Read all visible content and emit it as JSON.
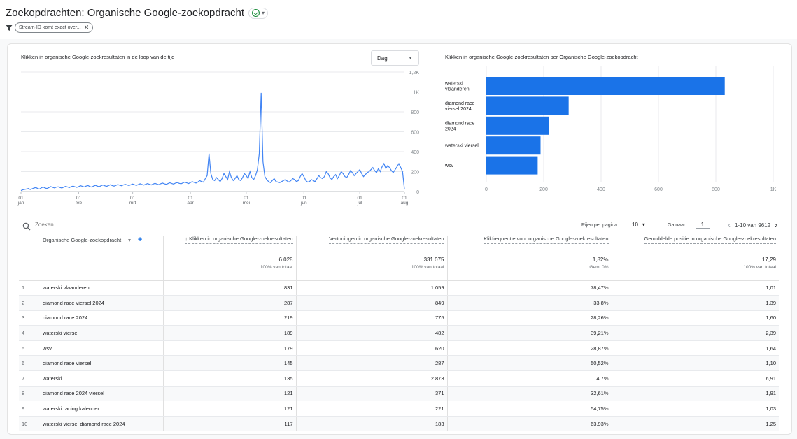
{
  "header": {
    "title": "Zoekopdrachten: Organische Google-zoekopdracht",
    "filter_chip": "Stream-ID komt exact over..."
  },
  "line_chart": {
    "title": "Klikken in organische Google-zoekresultaten in de loop van de tijd",
    "granularity": "Dag",
    "color": "#4285f4"
  },
  "bar_chart": {
    "title": "Klikken in organische Google-zoekresultaten per Organische Google-zoekopdracht",
    "color": "#1a73e8"
  },
  "chart_data": [
    {
      "type": "line",
      "title": "Klikken in organische Google-zoekresultaten in de loop van de tijd",
      "x_tick_labels": [
        [
          "01",
          "jan"
        ],
        [
          "01",
          "feb"
        ],
        [
          "01",
          "mrt"
        ],
        [
          "01",
          "apr"
        ],
        [
          "01",
          "mei"
        ],
        [
          "01",
          "jun"
        ],
        [
          "01",
          "jul"
        ],
        [
          "01",
          "aug"
        ]
      ],
      "y_tick_labels": [
        "0",
        "200",
        "400",
        "600",
        "800",
        "1K",
        "1,2K"
      ],
      "ylim": [
        0,
        1200
      ],
      "y_axis_side": "right",
      "grid": true,
      "series": [
        {
          "values": [
            10,
            18,
            22,
            25,
            30,
            20,
            28,
            35,
            40,
            30,
            25,
            38,
            45,
            35,
            30,
            40,
            50,
            42,
            36,
            44,
            48,
            40,
            35,
            45,
            52,
            46,
            40,
            50,
            55,
            48,
            42,
            50,
            58,
            52,
            46,
            55,
            60,
            50,
            45,
            55,
            62,
            55,
            48,
            58,
            65,
            58,
            52,
            60,
            68,
            60,
            55,
            62,
            70,
            64,
            58,
            66,
            72,
            66,
            60,
            68,
            75,
            68,
            62,
            70,
            78,
            70,
            65,
            72,
            80,
            72,
            66,
            75,
            82,
            75,
            68,
            78,
            85,
            78,
            72,
            80,
            88,
            80,
            75,
            85,
            90,
            82,
            78,
            86,
            95,
            88,
            80,
            90,
            100,
            92,
            85,
            95,
            110,
            100,
            95,
            130,
            160,
            380,
            180,
            120,
            110,
            140,
            120,
            100,
            130,
            180,
            150,
            120,
            200,
            140,
            110,
            130,
            160,
            120,
            110,
            140,
            180,
            160,
            130,
            200,
            140,
            120,
            160,
            220,
            380,
            990,
            300,
            150,
            120,
            100,
            90,
            110,
            130,
            100,
            95,
            90,
            100,
            110,
            120,
            105,
            95,
            110,
            130,
            120,
            100,
            110,
            150,
            180,
            150,
            110,
            95,
            100,
            120,
            110,
            100,
            130,
            160,
            140,
            130,
            150,
            200,
            180,
            140,
            120,
            150,
            170,
            130,
            160,
            200,
            180,
            150,
            140,
            170,
            210,
            190,
            160,
            180,
            200,
            220,
            180,
            150,
            170,
            190,
            200,
            220,
            240,
            210,
            190,
            230,
            200,
            250,
            280,
            230,
            260,
            240,
            210,
            190,
            220,
            250,
            280,
            240,
            200,
            20
          ]
        }
      ]
    },
    {
      "type": "bar",
      "orientation": "horizontal",
      "title": "Klikken in organische Google-zoekresultaten per Organische Google-zoekopdracht",
      "categories": [
        [
          "waterski",
          "vlaanderen"
        ],
        [
          "diamond race",
          "viersel 2024"
        ],
        [
          "diamond race",
          "2024"
        ],
        [
          "waterski viersel"
        ],
        [
          "wsv"
        ]
      ],
      "values": [
        831,
        287,
        219,
        189,
        179
      ],
      "x_tick_labels": [
        "0",
        "200",
        "400",
        "600",
        "800",
        "1K"
      ],
      "xlim": [
        0,
        1000
      ],
      "grid": true
    }
  ],
  "table": {
    "search_placeholder": "Zoeken...",
    "rows_per_page_label": "Rijen per pagina:",
    "rows_per_page_value": "10",
    "goto_label": "Ga naar:",
    "goto_value": "1",
    "range_label": "1-10 van 9612",
    "dimension_header": "Organische Google-zoekopdracht",
    "metric_headers": [
      "↓ Klikken in organische Google-zoekresultaten",
      "Vertoningen in organische Google-zoekresultaten",
      "Klikfrequentie voor organische Google-zoekresultaten",
      "Gemiddelde positie in organische Google-zoekresultaten"
    ],
    "totals": [
      {
        "value": "6.028",
        "sub": "100% van totaal"
      },
      {
        "value": "331.075",
        "sub": "100% van totaal"
      },
      {
        "value": "1,82%",
        "sub": "Gem. 0%"
      },
      {
        "value": "17,29",
        "sub": "100% van totaal"
      }
    ],
    "rows": [
      {
        "idx": "1",
        "term": "waterski vlaanderen",
        "clicks": "831",
        "impr": "1.059",
        "ctr": "78,47%",
        "pos": "1,01"
      },
      {
        "idx": "2",
        "term": "diamond race viersel 2024",
        "clicks": "287",
        "impr": "849",
        "ctr": "33,8%",
        "pos": "1,39"
      },
      {
        "idx": "3",
        "term": "diamond race 2024",
        "clicks": "219",
        "impr": "775",
        "ctr": "28,26%",
        "pos": "1,60"
      },
      {
        "idx": "4",
        "term": "waterski viersel",
        "clicks": "189",
        "impr": "482",
        "ctr": "39,21%",
        "pos": "2,39"
      },
      {
        "idx": "5",
        "term": "wsv",
        "clicks": "179",
        "impr": "620",
        "ctr": "28,87%",
        "pos": "1,64"
      },
      {
        "idx": "6",
        "term": "diamond race viersel",
        "clicks": "145",
        "impr": "287",
        "ctr": "50,52%",
        "pos": "1,10"
      },
      {
        "idx": "7",
        "term": "waterski",
        "clicks": "135",
        "impr": "2.873",
        "ctr": "4,7%",
        "pos": "6,91"
      },
      {
        "idx": "8",
        "term": "diamond race 2024 viersel",
        "clicks": "121",
        "impr": "371",
        "ctr": "32,61%",
        "pos": "1,91"
      },
      {
        "idx": "9",
        "term": "waterski racing kalender",
        "clicks": "121",
        "impr": "221",
        "ctr": "54,75%",
        "pos": "1,03"
      },
      {
        "idx": "10",
        "term": "waterski viersel diamond race 2024",
        "clicks": "117",
        "impr": "183",
        "ctr": "63,93%",
        "pos": "1,25"
      }
    ]
  }
}
